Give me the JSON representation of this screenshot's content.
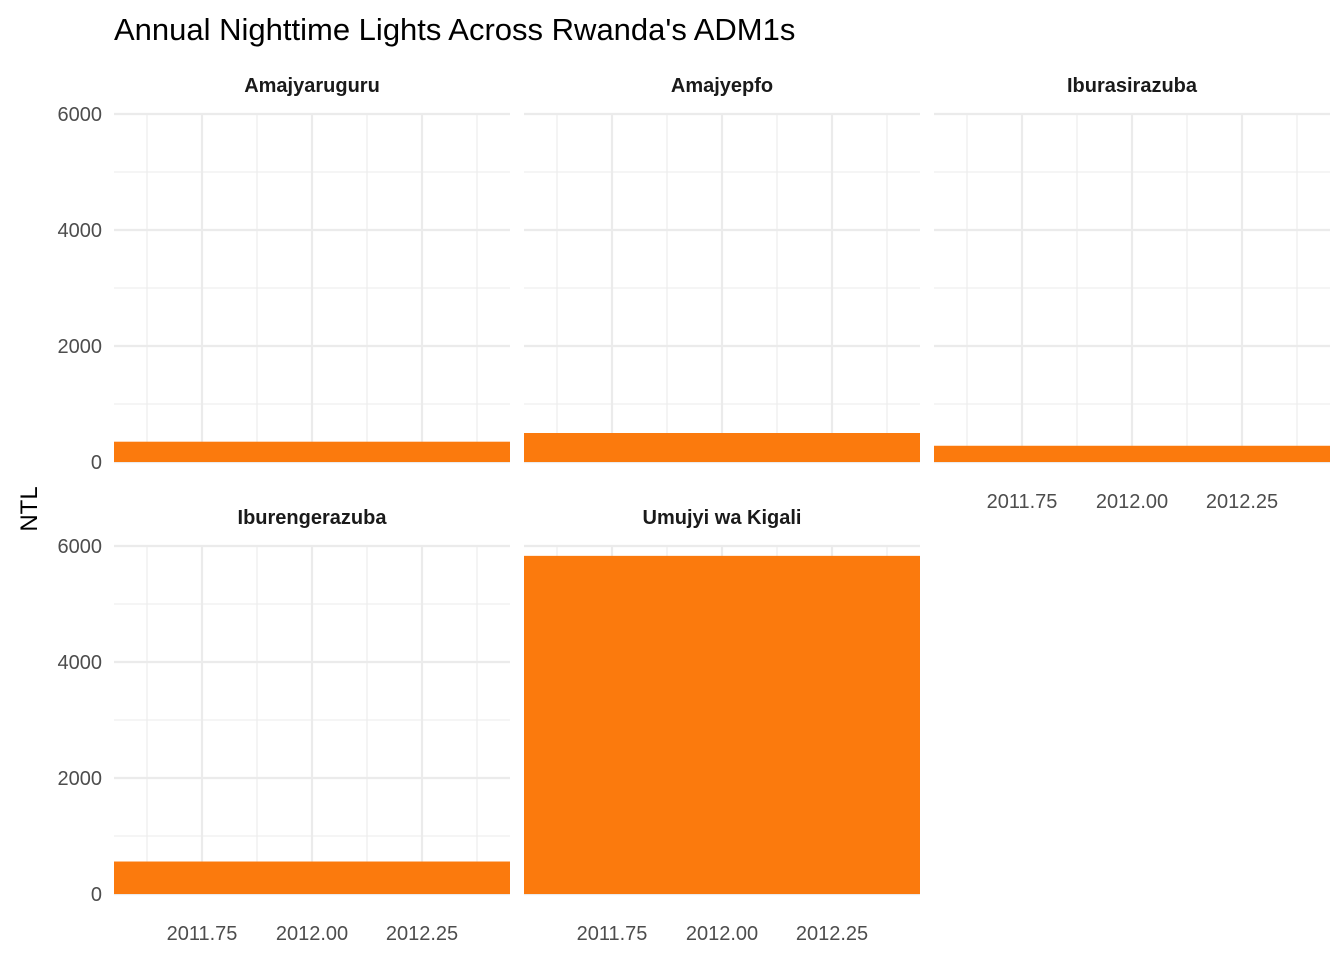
{
  "chart_data": {
    "type": "bar",
    "title": "Annual Nighttime Lights Across Rwanda's ADM1s",
    "xlabel": "",
    "ylabel": "NTL",
    "x": [
      2012
    ],
    "xlim": [
      2011.55,
      2012.45
    ],
    "x_ticks": [
      2011.75,
      2012.0,
      2012.25
    ],
    "x_tick_labels": [
      "2011.75",
      "2012.00",
      "2012.25"
    ],
    "ylim": [
      0,
      6000
    ],
    "y_ticks": [
      0,
      2000,
      4000,
      6000
    ],
    "y_tick_labels": [
      "0",
      "2000",
      "4000",
      "6000"
    ],
    "grid": true,
    "legend": "none",
    "bar_color": "#FB7A0D",
    "facets": [
      {
        "name": "Amajyaruguru",
        "values": [
          350
        ]
      },
      {
        "name": "Amajyepfo",
        "values": [
          500
        ]
      },
      {
        "name": "Iburasirazuba",
        "values": [
          280
        ]
      },
      {
        "name": "Iburengerazuba",
        "values": [
          560
        ]
      },
      {
        "name": "Umujyi wa Kigali",
        "values": [
          5830
        ]
      }
    ]
  }
}
